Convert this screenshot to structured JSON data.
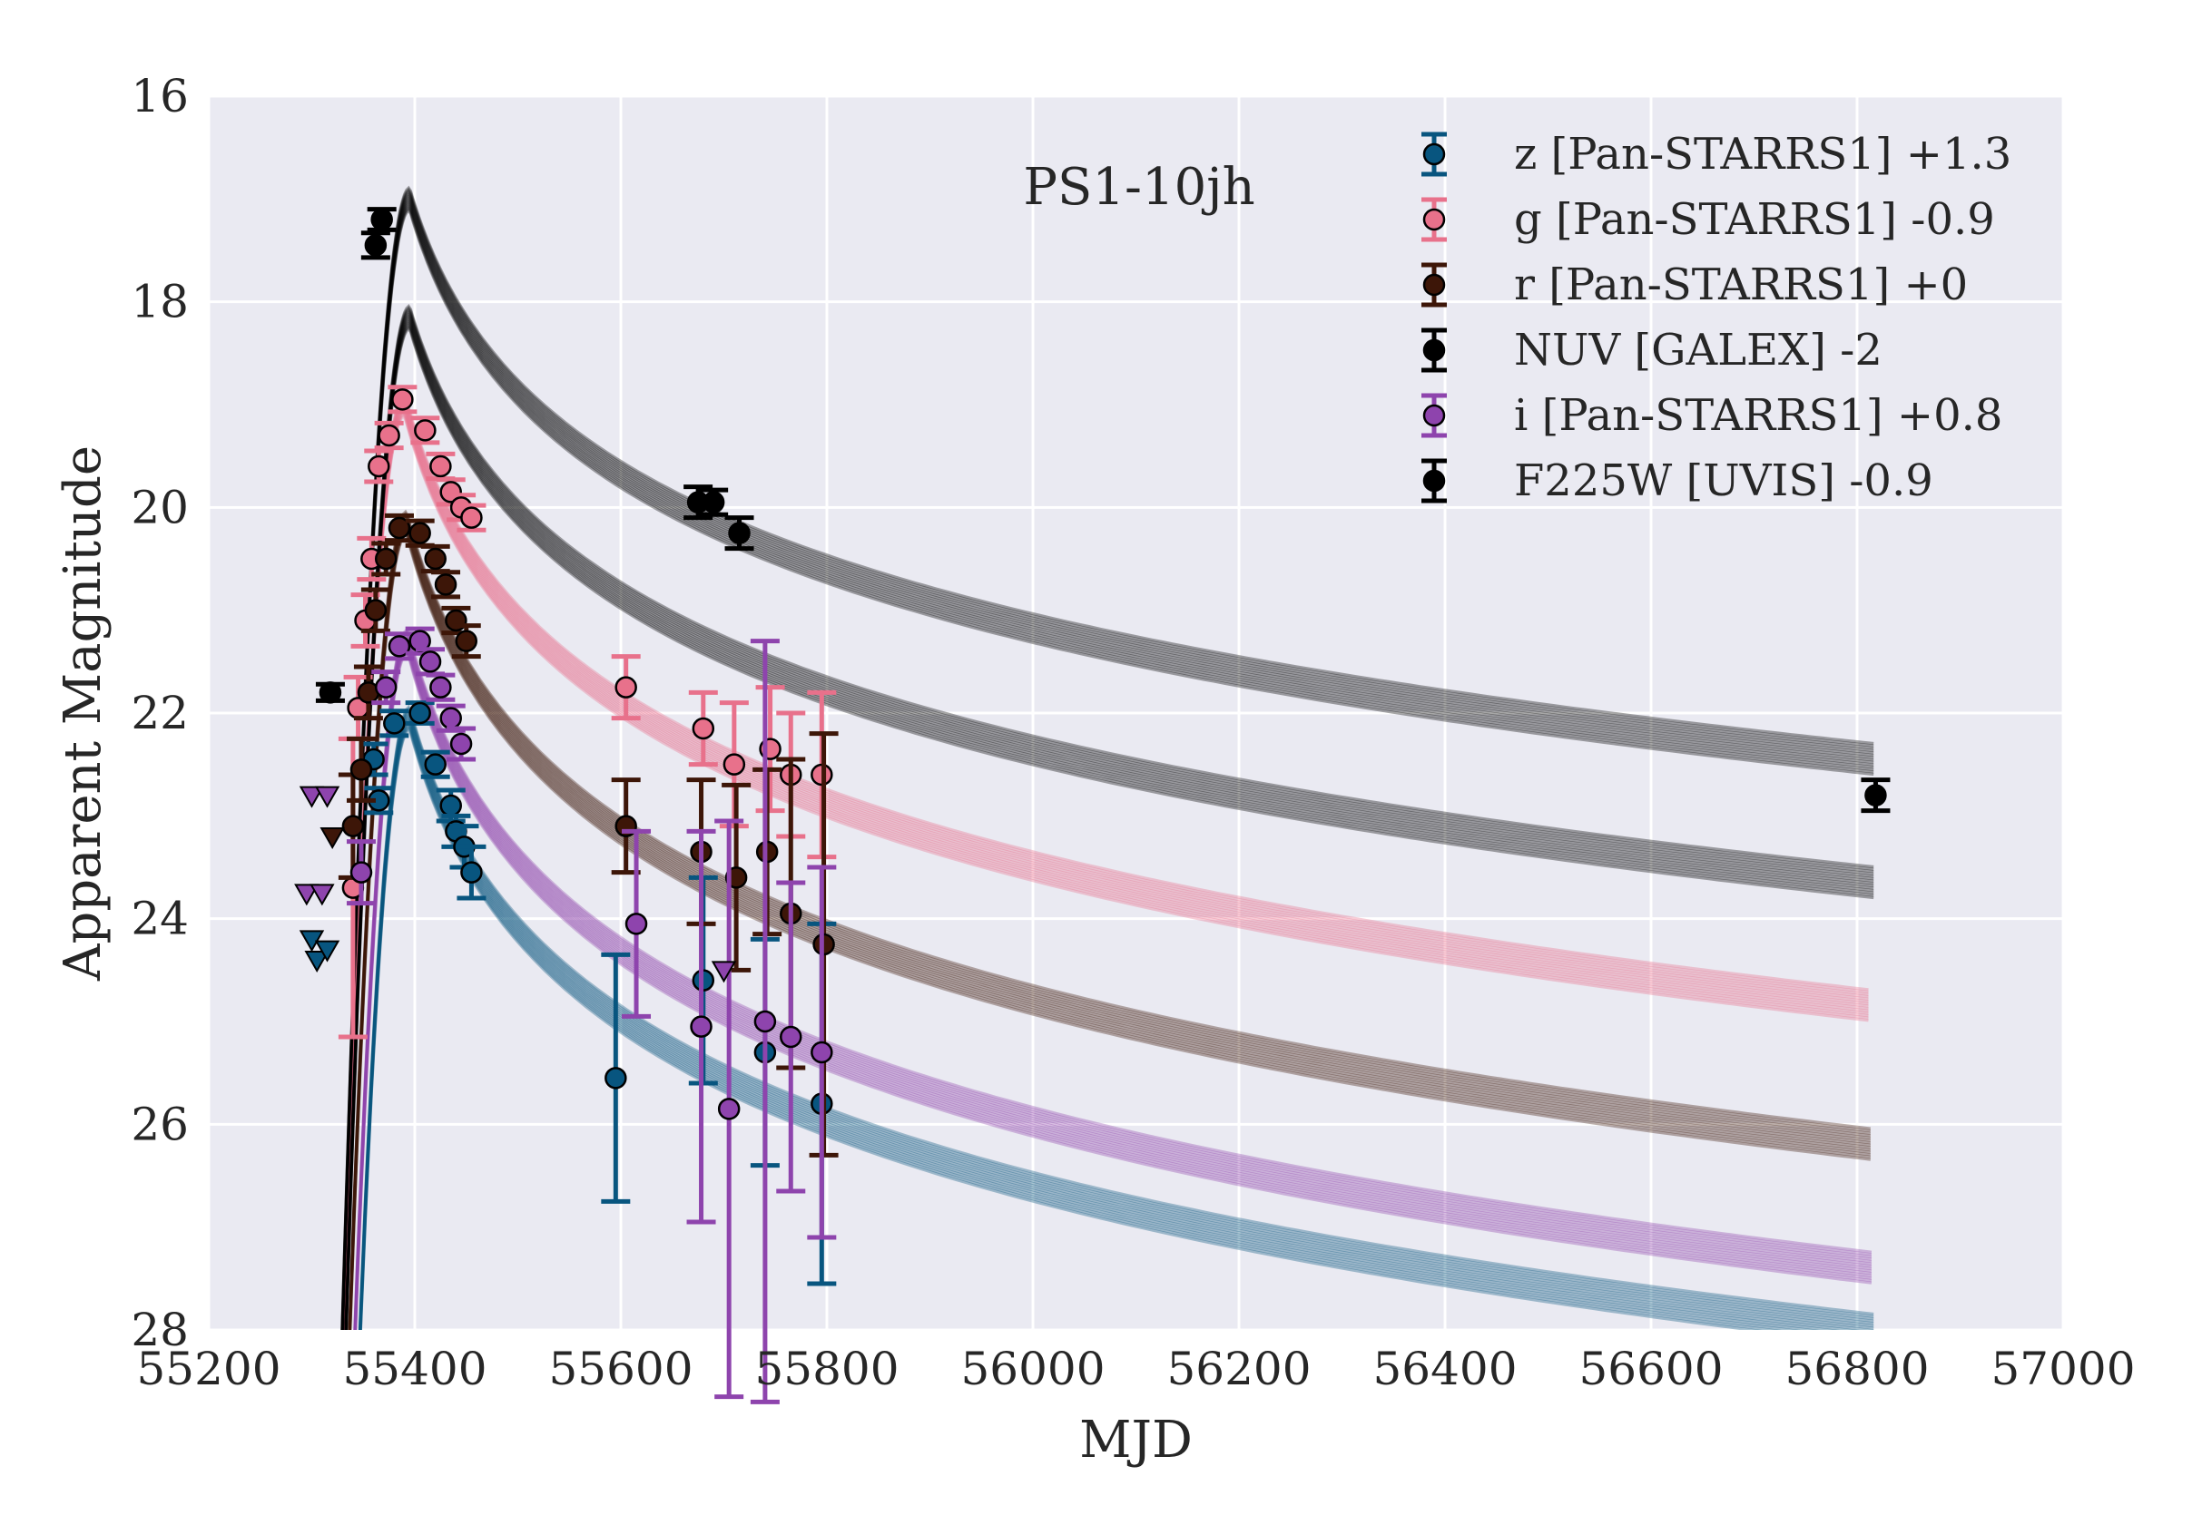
{
  "chart_data": {
    "type": "scatter",
    "title": "",
    "annotation": "PS1-10jh",
    "xlabel": "MJD",
    "ylabel": "Apparent Magnitude",
    "xlim": [
      55200,
      57000
    ],
    "ylim": [
      16,
      28
    ],
    "y_inverted": true,
    "xticks": [
      "55200",
      "55400",
      "55600",
      "55800",
      "56000",
      "56200",
      "56400",
      "56600",
      "56800",
      "57000"
    ],
    "yticks": [
      "16",
      "18",
      "20",
      "22",
      "24",
      "26",
      "28"
    ],
    "grid": true,
    "legend_position": "top-right",
    "background_color": "#eaeaf2",
    "model_end_mjd": 56820,
    "series": [
      {
        "name": "z [Pan-STARRS1] +1.3",
        "color": "#08557f",
        "model": {
          "peak_mjd": 55395,
          "peak_mag": 22.05,
          "end_mag": 28.0,
          "decline_index": 1.6
        },
        "points": [
          {
            "x": 55360,
            "y": 22.45,
            "err": 0.15
          },
          {
            "x": 55365,
            "y": 22.85,
            "err": 0.12
          },
          {
            "x": 55380,
            "y": 22.1,
            "err": 0.12
          },
          {
            "x": 55405,
            "y": 22.0,
            "err": 0.1
          },
          {
            "x": 55420,
            "y": 22.5,
            "err": 0.12
          },
          {
            "x": 55435,
            "y": 22.9,
            "err": 0.15
          },
          {
            "x": 55440,
            "y": 23.15,
            "err": 0.15
          },
          {
            "x": 55448,
            "y": 23.3,
            "err": 0.2
          },
          {
            "x": 55455,
            "y": 23.55,
            "err": 0.25
          },
          {
            "x": 55595,
            "y": 25.55,
            "err": 1.2
          },
          {
            "x": 55680,
            "y": 24.6,
            "err": 1.0
          },
          {
            "x": 55740,
            "y": 25.3,
            "err": 1.1
          },
          {
            "x": 55795,
            "y": 25.8,
            "err": 1.75
          }
        ],
        "limits": [
          {
            "x": 55300,
            "y": 24.2
          },
          {
            "x": 55305,
            "y": 24.4
          },
          {
            "x": 55315,
            "y": 24.3
          }
        ]
      },
      {
        "name": "g [Pan-STARRS1] -0.9",
        "color": "#e8718b",
        "model": {
          "peak_mjd": 55390,
          "peak_mag": 19.0,
          "end_mag": 24.85,
          "decline_index": 1.7
        },
        "points": [
          {
            "x": 55340,
            "y": 23.7,
            "err": 1.45
          },
          {
            "x": 55345,
            "y": 21.95,
            "err": 0.3
          },
          {
            "x": 55352,
            "y": 21.1,
            "err": 0.25
          },
          {
            "x": 55358,
            "y": 20.5,
            "err": 0.2
          },
          {
            "x": 55365,
            "y": 19.6,
            "err": 0.15
          },
          {
            "x": 55375,
            "y": 19.3,
            "err": 0.12
          },
          {
            "x": 55388,
            "y": 18.95,
            "err": 0.12
          },
          {
            "x": 55410,
            "y": 19.25,
            "err": 0.12
          },
          {
            "x": 55425,
            "y": 19.6,
            "err": 0.12
          },
          {
            "x": 55435,
            "y": 19.85,
            "err": 0.12
          },
          {
            "x": 55445,
            "y": 20.0,
            "err": 0.12
          },
          {
            "x": 55455,
            "y": 20.1,
            "err": 0.12
          },
          {
            "x": 55605,
            "y": 21.75,
            "err": 0.3
          },
          {
            "x": 55680,
            "y": 22.15,
            "err": 0.35
          },
          {
            "x": 55710,
            "y": 22.5,
            "err": 0.6
          },
          {
            "x": 55745,
            "y": 22.35,
            "err": 0.6
          },
          {
            "x": 55765,
            "y": 22.6,
            "err": 0.6
          },
          {
            "x": 55795,
            "y": 22.6,
            "err": 0.8
          }
        ],
        "limits": []
      },
      {
        "name": "r [Pan-STARRS1] +0",
        "color": "#3d1608",
        "model": {
          "peak_mjd": 55392,
          "peak_mag": 20.15,
          "end_mag": 26.2,
          "decline_index": 1.65
        },
        "points": [
          {
            "x": 55340,
            "y": 23.1,
            "err": 0.5
          },
          {
            "x": 55348,
            "y": 22.55,
            "err": 0.3
          },
          {
            "x": 55355,
            "y": 21.8,
            "err": 0.25
          },
          {
            "x": 55362,
            "y": 21.0,
            "err": 0.2
          },
          {
            "x": 55372,
            "y": 20.5,
            "err": 0.15
          },
          {
            "x": 55385,
            "y": 20.2,
            "err": 0.12
          },
          {
            "x": 55405,
            "y": 20.25,
            "err": 0.12
          },
          {
            "x": 55420,
            "y": 20.5,
            "err": 0.12
          },
          {
            "x": 55430,
            "y": 20.75,
            "err": 0.12
          },
          {
            "x": 55440,
            "y": 21.1,
            "err": 0.12
          },
          {
            "x": 55450,
            "y": 21.3,
            "err": 0.15
          },
          {
            "x": 55605,
            "y": 23.1,
            "err": 0.45
          },
          {
            "x": 55678,
            "y": 23.35,
            "err": 0.7
          },
          {
            "x": 55712,
            "y": 23.6,
            "err": 0.9
          },
          {
            "x": 55742,
            "y": 23.35,
            "err": 0.8
          },
          {
            "x": 55765,
            "y": 23.95,
            "err": 1.5
          },
          {
            "x": 55797,
            "y": 24.25,
            "err": 2.05
          }
        ],
        "limits": [
          {
            "x": 55320,
            "y": 23.2
          }
        ]
      },
      {
        "name": "NUV [GALEX] -2",
        "color": "#000000",
        "model": {
          "peak_mjd": 55395,
          "peak_mag": 17.0,
          "end_mag": 22.45,
          "decline_index": 1.7
        },
        "points": [
          {
            "x": 55362,
            "y": 17.45,
            "err": 0.12
          },
          {
            "x": 55368,
            "y": 17.2,
            "err": 0.1
          },
          {
            "x": 55318,
            "y": 21.8,
            "err": 0.08
          },
          {
            "x": 56818,
            "y": 22.8,
            "err": 0.15
          }
        ],
        "limits": []
      },
      {
        "name": "i [Pan-STARRS1] +0.8",
        "color": "#8e44ad",
        "model": {
          "peak_mjd": 55393,
          "peak_mag": 21.3,
          "end_mag": 27.4,
          "decline_index": 1.6
        },
        "points": [
          {
            "x": 55348,
            "y": 23.55,
            "err": 0.3
          },
          {
            "x": 55372,
            "y": 21.75,
            "err": 0.15
          },
          {
            "x": 55385,
            "y": 21.35,
            "err": 0.12
          },
          {
            "x": 55405,
            "y": 21.3,
            "err": 0.12
          },
          {
            "x": 55415,
            "y": 21.5,
            "err": 0.12
          },
          {
            "x": 55425,
            "y": 21.75,
            "err": 0.12
          },
          {
            "x": 55435,
            "y": 22.05,
            "err": 0.12
          },
          {
            "x": 55445,
            "y": 22.3,
            "err": 0.15
          },
          {
            "x": 55615,
            "y": 24.05,
            "err": 0.9
          },
          {
            "x": 55678,
            "y": 25.05,
            "err": 1.9
          },
          {
            "x": 55705,
            "y": 25.85,
            "err": 2.8
          },
          {
            "x": 55740,
            "y": 25.0,
            "err": 3.7
          },
          {
            "x": 55765,
            "y": 25.15,
            "err": 1.5
          },
          {
            "x": 55795,
            "y": 25.3,
            "err": 1.8
          }
        ],
        "limits": [
          {
            "x": 55295,
            "y": 23.75
          },
          {
            "x": 55310,
            "y": 23.75
          },
          {
            "x": 55300,
            "y": 22.8
          },
          {
            "x": 55315,
            "y": 22.8
          },
          {
            "x": 55700,
            "y": 24.5
          }
        ]
      },
      {
        "name": "F225W [UVIS] -0.9",
        "color": "#000000",
        "model": {
          "peak_mjd": 55395,
          "peak_mag": 18.15,
          "end_mag": 23.65,
          "decline_index": 1.7
        },
        "points": [
          {
            "x": 55675,
            "y": 19.95,
            "err": 0.15
          },
          {
            "x": 55690,
            "y": 19.95,
            "err": 0.12
          },
          {
            "x": 55715,
            "y": 20.25,
            "err": 0.15
          }
        ],
        "limits": []
      }
    ]
  }
}
